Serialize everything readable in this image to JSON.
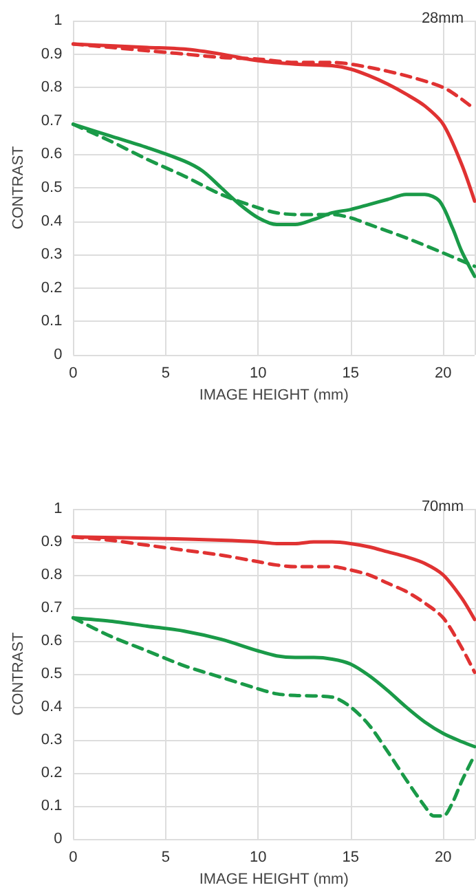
{
  "chart_data": [
    {
      "type": "line",
      "title": "28mm",
      "xlabel": "IMAGE HEIGHT (mm)",
      "ylabel": "CONTRAST",
      "xlim": [
        0,
        21.7
      ],
      "xticks": [
        0,
        5,
        10,
        15,
        20
      ],
      "ylim": [
        0,
        1
      ],
      "yticks": [
        0,
        0.1,
        0.2,
        0.3,
        0.4,
        0.5,
        0.6,
        0.7,
        0.8,
        0.9,
        1
      ],
      "grid": true,
      "marker": "none",
      "series": [
        {
          "color": "#e03232",
          "line_style": "solid",
          "x": [
            0,
            2,
            4,
            6,
            8,
            10,
            12,
            14,
            15,
            16,
            17,
            18,
            19,
            20,
            21,
            21.7
          ],
          "values": [
            0.93,
            0.925,
            0.92,
            0.915,
            0.9,
            0.88,
            0.87,
            0.865,
            0.855,
            0.835,
            0.81,
            0.78,
            0.745,
            0.69,
            0.57,
            0.46
          ]
        },
        {
          "color": "#e03232",
          "line_style": "dashed",
          "x": [
            0,
            2,
            4,
            6,
            8,
            10,
            12,
            14,
            16,
            18,
            20,
            21,
            21.7
          ],
          "values": [
            0.93,
            0.92,
            0.91,
            0.9,
            0.89,
            0.885,
            0.875,
            0.875,
            0.86,
            0.835,
            0.8,
            0.765,
            0.735
          ]
        },
        {
          "color": "#1a9a48",
          "line_style": "solid",
          "x": [
            0,
            2,
            4,
            6,
            7,
            8,
            9,
            10,
            11,
            12,
            13,
            14,
            15,
            16,
            17,
            18,
            19,
            19.8,
            20.5,
            21,
            21.7
          ],
          "values": [
            0.69,
            0.655,
            0.62,
            0.58,
            0.55,
            0.5,
            0.45,
            0.41,
            0.39,
            0.39,
            0.405,
            0.425,
            0.435,
            0.45,
            0.465,
            0.48,
            0.48,
            0.46,
            0.38,
            0.31,
            0.235
          ]
        },
        {
          "color": "#1a9a48",
          "line_style": "dashed",
          "x": [
            0,
            2,
            4,
            6,
            8,
            10,
            11,
            12,
            14,
            15,
            16,
            18,
            20,
            21.7
          ],
          "values": [
            0.69,
            0.64,
            0.585,
            0.535,
            0.48,
            0.44,
            0.425,
            0.42,
            0.42,
            0.41,
            0.39,
            0.35,
            0.305,
            0.265
          ]
        }
      ]
    },
    {
      "type": "line",
      "title": "70mm",
      "xlabel": "IMAGE HEIGHT (mm)",
      "ylabel": "CONTRAST",
      "xlim": [
        0,
        21.7
      ],
      "xticks": [
        0,
        5,
        10,
        15,
        20
      ],
      "ylim": [
        0,
        1
      ],
      "yticks": [
        0,
        0.1,
        0.2,
        0.3,
        0.4,
        0.5,
        0.6,
        0.7,
        0.8,
        0.9,
        1
      ],
      "grid": true,
      "marker": "none",
      "series": [
        {
          "color": "#e03232",
          "line_style": "solid",
          "x": [
            0,
            5,
            8,
            10,
            11,
            12,
            13,
            14,
            15,
            16,
            17,
            18,
            19,
            20,
            21,
            21.7
          ],
          "values": [
            0.915,
            0.91,
            0.905,
            0.9,
            0.895,
            0.895,
            0.9,
            0.9,
            0.895,
            0.885,
            0.87,
            0.855,
            0.835,
            0.8,
            0.73,
            0.665
          ]
        },
        {
          "color": "#e03232",
          "line_style": "dashed",
          "x": [
            0,
            2,
            4,
            6,
            8,
            10,
            11,
            12,
            14,
            15,
            16,
            17,
            18,
            19,
            20,
            21,
            21.7
          ],
          "values": [
            0.915,
            0.905,
            0.89,
            0.875,
            0.86,
            0.84,
            0.83,
            0.825,
            0.825,
            0.815,
            0.8,
            0.775,
            0.75,
            0.715,
            0.67,
            0.58,
            0.505
          ]
        },
        {
          "color": "#1a9a48",
          "line_style": "solid",
          "x": [
            0,
            2,
            4,
            6,
            8,
            10,
            11,
            12,
            13,
            14,
            15,
            16,
            17,
            18,
            19,
            20,
            21,
            21.7
          ],
          "values": [
            0.67,
            0.66,
            0.645,
            0.63,
            0.605,
            0.57,
            0.555,
            0.55,
            0.55,
            0.545,
            0.53,
            0.495,
            0.45,
            0.4,
            0.355,
            0.32,
            0.295,
            0.28
          ]
        },
        {
          "color": "#1a9a48",
          "line_style": "dashed",
          "x": [
            0,
            2,
            4,
            6,
            8,
            10,
            11,
            12,
            14,
            15,
            16,
            17,
            18,
            19,
            19.5,
            20,
            20.5,
            21,
            21.7
          ],
          "values": [
            0.67,
            0.615,
            0.57,
            0.525,
            0.49,
            0.455,
            0.44,
            0.435,
            0.43,
            0.4,
            0.345,
            0.265,
            0.18,
            0.1,
            0.07,
            0.07,
            0.11,
            0.175,
            0.255
          ]
        }
      ]
    }
  ]
}
